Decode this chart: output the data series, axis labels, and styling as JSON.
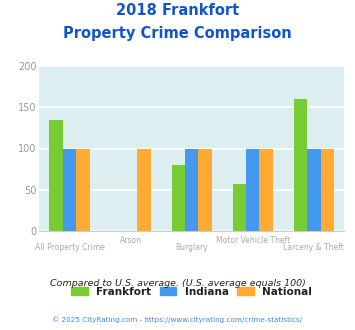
{
  "title_line1": "2018 Frankfort",
  "title_line2": "Property Crime Comparison",
  "categories": [
    "All Property Crime",
    "Arson",
    "Burglary",
    "Motor Vehicle Theft",
    "Larceny & Theft"
  ],
  "x_labels_row1": [
    "All Property Crime",
    "",
    "Burglary",
    "",
    "Larceny & Theft"
  ],
  "x_labels_row2": [
    "",
    "Arson",
    "",
    "Motor Vehicle Theft",
    ""
  ],
  "frankfort": [
    135,
    0,
    80,
    57,
    160
  ],
  "indiana": [
    100,
    0,
    100,
    100,
    100
  ],
  "national": [
    100,
    100,
    100,
    100,
    100
  ],
  "frankfort_color": "#77cc33",
  "indiana_color": "#4499ee",
  "national_color": "#ffaa33",
  "bg_color": "#ddeef0",
  "ylim": [
    0,
    200
  ],
  "yticks": [
    0,
    50,
    100,
    150,
    200
  ],
  "ylabel_color": "#999999",
  "title_color": "#1155cc",
  "subtitle_note": "Compared to U.S. average. (U.S. average equals 100)",
  "footer": "© 2025 CityRating.com - https://www.cityrating.com/crime-statistics/",
  "legend_labels": [
    "Frankfort",
    "Indiana",
    "National"
  ],
  "bar_width": 0.22,
  "grid_color": "#ffffff",
  "xlabel_color": "#aaaaaa"
}
